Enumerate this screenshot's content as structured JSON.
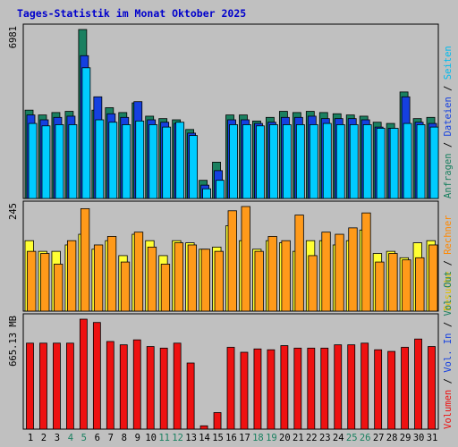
{
  "title": "Tages-Statistik im Monat Oktober 2025",
  "colors": {
    "background": "#c0c0c0",
    "plot_bg": "#c0c0c0",
    "title": "#0000cc",
    "anfragen": "#1a8060",
    "dateien": "#1540e0",
    "seiten": "#00ccff",
    "besuche": "#ffff33",
    "rechner": "#ff9a1a",
    "volumen": "#ee1111",
    "weekend": "#1a8060",
    "weekday": "#000000"
  },
  "side_labels": {
    "top": [
      {
        "text": "Anfragen",
        "color": "#1a8060"
      },
      {
        "text": " / ",
        "color": "#000000"
      },
      {
        "text": "Dateien",
        "color": "#1540e0"
      },
      {
        "text": " / ",
        "color": "#000000"
      },
      {
        "text": "Seiten",
        "color": "#00bbee"
      }
    ],
    "mid": [
      {
        "text": "Besuche",
        "color": "#e0c000"
      },
      {
        "text": " / ",
        "color": "#000000"
      },
      {
        "text": "Rechner",
        "color": "#ff8800"
      }
    ],
    "bottom": [
      {
        "text": "Volumen",
        "color": "#ee1111"
      },
      {
        "text": " / ",
        "color": "#000000"
      },
      {
        "text": "Vol. In",
        "color": "#1540e0"
      },
      {
        "text": " / ",
        "color": "#000000"
      },
      {
        "text": "Vol. Out",
        "color": "#1a8060"
      }
    ]
  },
  "chart_data": {
    "type": "bar",
    "x": [
      1,
      2,
      3,
      4,
      5,
      6,
      7,
      8,
      9,
      10,
      11,
      12,
      13,
      14,
      15,
      16,
      17,
      18,
      19,
      20,
      21,
      22,
      23,
      24,
      25,
      26,
      27,
      28,
      29,
      30,
      31
    ],
    "weekend_days": [
      4,
      5,
      11,
      12,
      18,
      19,
      25,
      26
    ],
    "panels": [
      {
        "id": "requests",
        "max_label": "6981",
        "ymax": 6981,
        "series": [
          {
            "name": "Anfragen",
            "values": [
              3650,
              3450,
              3550,
              3600,
              6981,
              3650,
              3750,
              3550,
              3950,
              3400,
              3300,
              3250,
              2850,
              750,
              1500,
              3450,
              3450,
              3200,
              3350,
              3600,
              3550,
              3600,
              3550,
              3500,
              3450,
              3400,
              3150,
              3100,
              4400,
              3300,
              3350
            ]
          },
          {
            "name": "Dateien",
            "values": [
              3450,
              3250,
              3350,
              3400,
              5900,
              4200,
              3500,
              3350,
              4000,
              3250,
              3150,
              3100,
              2700,
              550,
              1150,
              3250,
              3250,
              3100,
              3150,
              3350,
              3350,
              3400,
              3300,
              3300,
              3300,
              3250,
              2950,
              2900,
              4200,
              3150,
              3100
            ]
          },
          {
            "name": "Seiten",
            "values": [
              3100,
              3000,
              3050,
              3050,
              5400,
              3250,
              3150,
              3050,
              3200,
              3050,
              2950,
              3150,
              2600,
              400,
              750,
              3050,
              3050,
              3000,
              3050,
              3050,
              3050,
              3050,
              3100,
              3050,
              3050,
              3050,
              2900,
              2900,
              3100,
              3050,
              2950
            ]
          }
        ]
      },
      {
        "id": "visits",
        "max_label": "245",
        "ymax": 245,
        "series": [
          {
            "name": "Besuche",
            "values": [
              165,
              140,
              140,
              155,
              180,
              145,
              165,
              130,
              180,
              165,
              130,
              165,
              160,
              145,
              150,
              200,
              165,
              145,
              165,
              160,
              140,
              165,
              165,
              155,
              165,
              190,
              135,
              140,
              125,
              160,
              165
            ]
          },
          {
            "name": "Rechner",
            "values": [
              140,
              135,
              110,
              165,
              240,
              155,
              175,
              115,
              185,
              150,
              110,
              160,
              155,
              145,
              140,
              235,
              245,
              140,
              175,
              165,
              225,
              130,
              185,
              180,
              195,
              230,
              115,
              135,
              120,
              125,
              155
            ]
          }
        ]
      },
      {
        "id": "volume",
        "max_label": "665.13 MB",
        "ymax": 665.13,
        "series": [
          {
            "name": "Volumen",
            "values": [
              520,
              520,
              520,
              520,
              665,
              645,
              530,
              510,
              540,
              500,
              490,
              520,
              400,
              20,
              100,
              495,
              465,
              485,
              480,
              505,
              490,
              490,
              490,
              510,
              510,
              520,
              480,
              470,
              495,
              545,
              500
            ]
          }
        ]
      }
    ]
  }
}
